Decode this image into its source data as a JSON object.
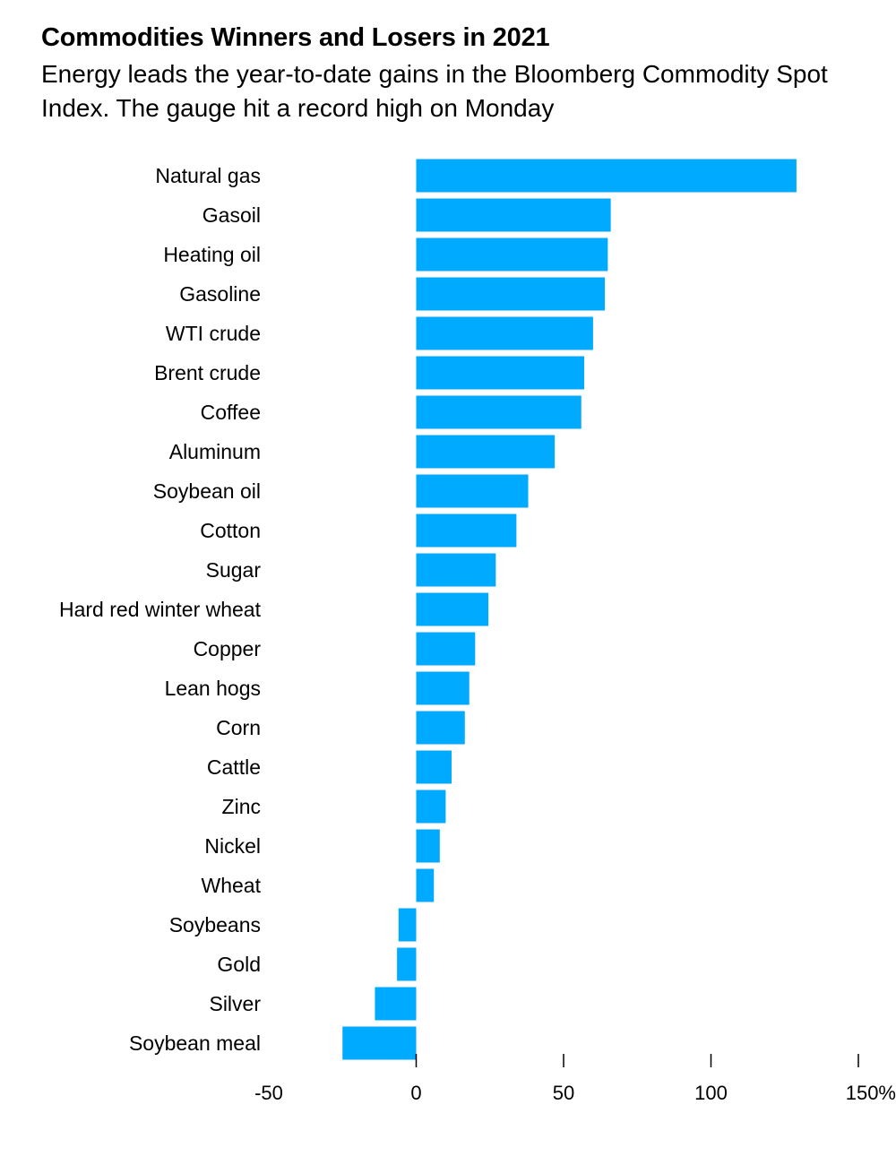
{
  "chart_data": {
    "type": "bar",
    "orientation": "horizontal",
    "title": "Commodities Winners and Losers in 2021",
    "subtitle": "Energy leads the year-to-date gains in the Bloomberg Commodity Spot Index. The gauge hit a record high on Monday",
    "categories": [
      "Natural gas",
      "Gasoil",
      "Heating oil",
      "Gasoline",
      "WTI crude",
      "Brent crude",
      "Coffee",
      "Aluminum",
      "Soybean oil",
      "Cotton",
      "Sugar",
      "Hard red winter wheat",
      "Copper",
      "Lean hogs",
      "Corn",
      "Cattle",
      "Zinc",
      "Nickel",
      "Wheat",
      "Soybeans",
      "Gold",
      "Silver",
      "Soybean meal"
    ],
    "values": [
      129,
      66,
      65,
      64,
      60,
      57,
      56,
      47,
      38,
      34,
      27,
      24.5,
      20,
      18,
      16.5,
      12,
      10,
      8,
      6,
      -6,
      -6.5,
      -14,
      -25
    ],
    "x_ticks": [
      "-50",
      "0",
      "50",
      "100",
      "150%"
    ],
    "xlim": [
      -50,
      150
    ],
    "bar_color": "#00aaff"
  }
}
